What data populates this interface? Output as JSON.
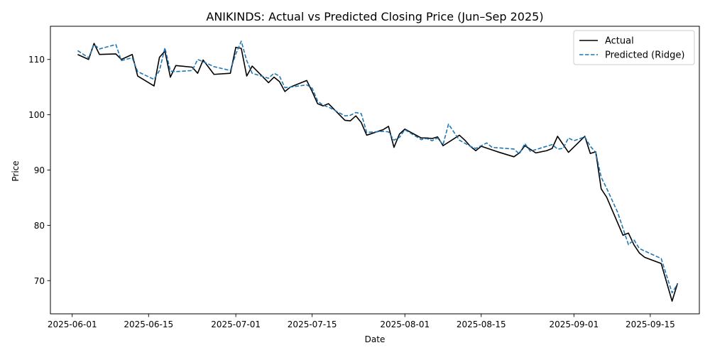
{
  "chart_data": {
    "type": "line",
    "title": "ANIKINDS: Actual vs Predicted Closing Price (Jun–Sep 2025)",
    "xlabel": "Date",
    "ylabel": "Price",
    "xlim": [
      "2025-05-28",
      "2025-09-24"
    ],
    "ylim": [
      64,
      116
    ],
    "x_ticks": [
      "2025-06-01",
      "2025-06-15",
      "2025-07-01",
      "2025-07-15",
      "2025-08-01",
      "2025-08-15",
      "2025-09-01",
      "2025-09-15"
    ],
    "y_ticks": [
      70,
      80,
      90,
      100,
      110
    ],
    "grid": false,
    "legend_position": "top-right",
    "series": [
      {
        "name": "Actual",
        "color": "#000000",
        "style": "solid",
        "points": [
          [
            "2025-06-02",
            110.9
          ],
          [
            "2025-06-04",
            110.0
          ],
          [
            "2025-06-05",
            112.9
          ],
          [
            "2025-06-06",
            110.9
          ],
          [
            "2025-06-09",
            111.0
          ],
          [
            "2025-06-10",
            110.0
          ],
          [
            "2025-06-12",
            110.9
          ],
          [
            "2025-06-13",
            107.0
          ],
          [
            "2025-06-16",
            105.2
          ],
          [
            "2025-06-17",
            110.4
          ],
          [
            "2025-06-18",
            111.5
          ],
          [
            "2025-06-19",
            106.8
          ],
          [
            "2025-06-20",
            108.9
          ],
          [
            "2025-06-23",
            108.6
          ],
          [
            "2025-06-24",
            107.5
          ],
          [
            "2025-06-25",
            109.9
          ],
          [
            "2025-06-27",
            107.3
          ],
          [
            "2025-06-30",
            107.5
          ],
          [
            "2025-07-01",
            112.2
          ],
          [
            "2025-07-02",
            112.0
          ],
          [
            "2025-07-03",
            107.0
          ],
          [
            "2025-07-04",
            108.8
          ],
          [
            "2025-07-07",
            105.8
          ],
          [
            "2025-07-08",
            106.8
          ],
          [
            "2025-07-09",
            106.0
          ],
          [
            "2025-07-10",
            104.2
          ],
          [
            "2025-07-11",
            105.0
          ],
          [
            "2025-07-14",
            106.2
          ],
          [
            "2025-07-15",
            104.2
          ],
          [
            "2025-07-16",
            102.0
          ],
          [
            "2025-07-17",
            101.6
          ],
          [
            "2025-07-18",
            102.0
          ],
          [
            "2025-07-21",
            99.0
          ],
          [
            "2025-07-22",
            98.9
          ],
          [
            "2025-07-23",
            99.8
          ],
          [
            "2025-07-24",
            98.6
          ],
          [
            "2025-07-25",
            96.3
          ],
          [
            "2025-07-28",
            97.3
          ],
          [
            "2025-07-29",
            97.9
          ],
          [
            "2025-07-30",
            94.1
          ],
          [
            "2025-07-31",
            96.5
          ],
          [
            "2025-08-01",
            97.4
          ],
          [
            "2025-08-04",
            95.8
          ],
          [
            "2025-08-05",
            95.8
          ],
          [
            "2025-08-06",
            95.7
          ],
          [
            "2025-08-07",
            96.0
          ],
          [
            "2025-08-08",
            94.4
          ],
          [
            "2025-08-11",
            96.3
          ],
          [
            "2025-08-12",
            95.4
          ],
          [
            "2025-08-13",
            94.3
          ],
          [
            "2025-08-14",
            93.5
          ],
          [
            "2025-08-15",
            94.3
          ],
          [
            "2025-08-18",
            93.3
          ],
          [
            "2025-08-21",
            92.4
          ],
          [
            "2025-08-22",
            93.1
          ],
          [
            "2025-08-23",
            94.4
          ],
          [
            "2025-08-25",
            93.1
          ],
          [
            "2025-08-27",
            93.5
          ],
          [
            "2025-08-28",
            93.9
          ],
          [
            "2025-08-29",
            96.1
          ],
          [
            "2025-08-31",
            93.2
          ],
          [
            "2025-09-03",
            96.1
          ],
          [
            "2025-09-04",
            93.0
          ],
          [
            "2025-09-05",
            93.3
          ],
          [
            "2025-09-06",
            86.6
          ],
          [
            "2025-09-07",
            85.1
          ],
          [
            "2025-09-10",
            78.2
          ],
          [
            "2025-09-11",
            78.6
          ],
          [
            "2025-09-12",
            76.5
          ],
          [
            "2025-09-13",
            75.0
          ],
          [
            "2025-09-14",
            74.2
          ],
          [
            "2025-09-17",
            73.1
          ],
          [
            "2025-09-19",
            66.3
          ],
          [
            "2025-09-20",
            69.5
          ]
        ]
      },
      {
        "name": "Predicted (Ridge)",
        "color": "#1f77b4",
        "style": "dashed",
        "points": [
          [
            "2025-06-02",
            111.6
          ],
          [
            "2025-06-04",
            110.3
          ],
          [
            "2025-06-05",
            112.7
          ],
          [
            "2025-06-06",
            111.9
          ],
          [
            "2025-06-09",
            112.7
          ],
          [
            "2025-06-10",
            109.8
          ],
          [
            "2025-06-12",
            110.3
          ],
          [
            "2025-06-13",
            107.8
          ],
          [
            "2025-06-16",
            106.4
          ],
          [
            "2025-06-17",
            108.0
          ],
          [
            "2025-06-18",
            112.1
          ],
          [
            "2025-06-19",
            107.9
          ],
          [
            "2025-06-20",
            107.8
          ],
          [
            "2025-06-23",
            108.0
          ],
          [
            "2025-06-24",
            110.0
          ],
          [
            "2025-06-25",
            109.6
          ],
          [
            "2025-06-27",
            108.7
          ],
          [
            "2025-06-30",
            108.0
          ],
          [
            "2025-07-01",
            111.0
          ],
          [
            "2025-07-02",
            113.3
          ],
          [
            "2025-07-03",
            109.8
          ],
          [
            "2025-07-04",
            107.5
          ],
          [
            "2025-07-07",
            106.6
          ],
          [
            "2025-07-08",
            107.5
          ],
          [
            "2025-07-09",
            107.0
          ],
          [
            "2025-07-10",
            104.9
          ],
          [
            "2025-07-11",
            105.0
          ],
          [
            "2025-07-14",
            105.4
          ],
          [
            "2025-07-15",
            104.8
          ],
          [
            "2025-07-16",
            102.5
          ],
          [
            "2025-07-17",
            101.7
          ],
          [
            "2025-07-18",
            101.4
          ],
          [
            "2025-07-21",
            99.8
          ],
          [
            "2025-07-22",
            99.9
          ],
          [
            "2025-07-23",
            100.4
          ],
          [
            "2025-07-24",
            100.2
          ],
          [
            "2025-07-25",
            96.8
          ],
          [
            "2025-07-28",
            97.0
          ],
          [
            "2025-07-29",
            96.9
          ],
          [
            "2025-07-30",
            95.4
          ],
          [
            "2025-07-31",
            95.9
          ],
          [
            "2025-08-01",
            97.3
          ],
          [
            "2025-08-04",
            95.5
          ],
          [
            "2025-08-05",
            95.7
          ],
          [
            "2025-08-06",
            95.3
          ],
          [
            "2025-08-07",
            95.8
          ],
          [
            "2025-08-08",
            94.6
          ],
          [
            "2025-08-09",
            98.3
          ],
          [
            "2025-08-11",
            95.4
          ],
          [
            "2025-08-13",
            94.3
          ],
          [
            "2025-08-14",
            93.9
          ],
          [
            "2025-08-16",
            94.9
          ],
          [
            "2025-08-17",
            94.1
          ],
          [
            "2025-08-21",
            93.8
          ],
          [
            "2025-08-22",
            92.9
          ],
          [
            "2025-08-23",
            94.8
          ],
          [
            "2025-08-24",
            93.4
          ],
          [
            "2025-08-28",
            94.6
          ],
          [
            "2025-08-29",
            93.8
          ],
          [
            "2025-08-30",
            93.9
          ],
          [
            "2025-08-31",
            95.8
          ],
          [
            "2025-09-01",
            95.3
          ],
          [
            "2025-09-03",
            96.0
          ],
          [
            "2025-09-04",
            94.3
          ],
          [
            "2025-09-05",
            93.2
          ],
          [
            "2025-09-06",
            88.7
          ],
          [
            "2025-09-07",
            86.7
          ],
          [
            "2025-09-09",
            82.4
          ],
          [
            "2025-09-11",
            76.5
          ],
          [
            "2025-09-12",
            77.4
          ],
          [
            "2025-09-13",
            75.8
          ],
          [
            "2025-09-17",
            74.0
          ],
          [
            "2025-09-19",
            67.8
          ],
          [
            "2025-09-20",
            69.4
          ]
        ]
      }
    ]
  }
}
